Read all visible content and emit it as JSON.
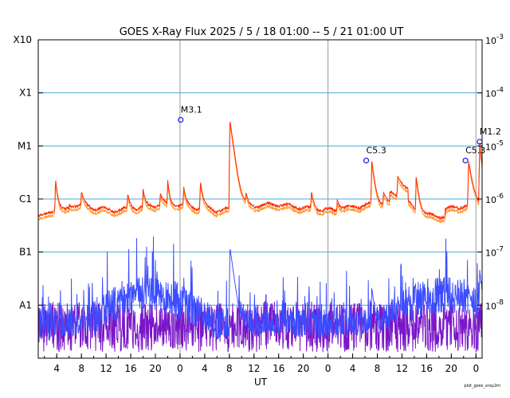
{
  "chart_data": {
    "type": "line",
    "title": "GOES X-Ray Flux   2025  /  5  /  18    01:00 --   5  /  21    01:00    UT",
    "xlabel": "UT",
    "x_ticks": [
      "4",
      "8",
      "12",
      "16",
      "20",
      "0",
      "4",
      "8",
      "12",
      "16",
      "20",
      "0",
      "4",
      "8",
      "12",
      "16",
      "20",
      "0"
    ],
    "x_range_hours": [
      0,
      72
    ],
    "y_scale": "log",
    "ylim": [
      1e-09,
      0.001
    ],
    "left_labels": [
      "X10",
      "X1",
      "M1",
      "C1",
      "B1",
      "A1"
    ],
    "right_labels": [
      {
        "base": "10",
        "exp": "-3"
      },
      {
        "base": "10",
        "exp": "-4"
      },
      {
        "base": "10",
        "exp": "-5"
      },
      {
        "base": "10",
        "exp": "-6"
      },
      {
        "base": "10",
        "exp": "-7"
      },
      {
        "base": "10",
        "exp": "-8"
      }
    ],
    "grid": "horizontal at each decade, vertical at day boundaries",
    "colors": {
      "long_primary": "#ff2a00",
      "long_secondary": "#ff9a2e",
      "short_primary": "#3b4dff",
      "short_secondary": "#7a16c8",
      "grid": "#4aa8e0",
      "day_line": "#999999",
      "marker": "#1a1ae6"
    },
    "flares": [
      {
        "label": "M3.1",
        "t": 23.1,
        "flux": 3.1e-05
      },
      {
        "label": "C5.3",
        "t": 53.2,
        "flux": 5.3e-06
      },
      {
        "label": "C5.3",
        "t": 69.3,
        "flux": 5.3e-06
      },
      {
        "label": "M1.2",
        "t": 71.6,
        "flux": 1.2e-05
      }
    ],
    "footer": "plot_goes_xray2m"
  }
}
